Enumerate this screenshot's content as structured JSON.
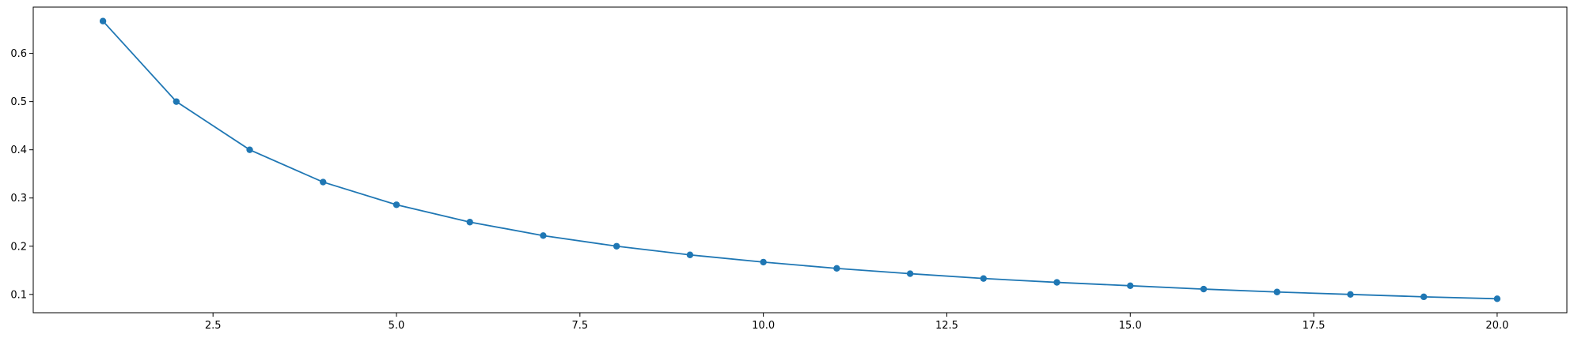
{
  "chart_data": {
    "type": "line",
    "title": "",
    "xlabel": "",
    "ylabel": "",
    "xlim": [
      0.05,
      20.95
    ],
    "ylim": [
      0.062,
      0.696
    ],
    "xticks": [
      2.5,
      5.0,
      7.5,
      10.0,
      12.5,
      15.0,
      17.5,
      20.0
    ],
    "xtick_labels": [
      "2.5",
      "5.0",
      "7.5",
      "10.0",
      "12.5",
      "15.0",
      "17.5",
      "20.0"
    ],
    "yticks": [
      0.1,
      0.2,
      0.3,
      0.4,
      0.5,
      0.6
    ],
    "ytick_labels": [
      "0.1",
      "0.2",
      "0.3",
      "0.4",
      "0.5",
      "0.6"
    ],
    "grid": false,
    "legend": "none",
    "series": [
      {
        "color": "#1f77b4",
        "marker": "circle",
        "x": [
          1,
          2,
          3,
          4,
          5,
          6,
          7,
          8,
          9,
          10,
          11,
          12,
          13,
          14,
          15,
          16,
          17,
          18,
          19,
          20
        ],
        "y": [
          0.667,
          0.5,
          0.4,
          0.333,
          0.286,
          0.25,
          0.222,
          0.2,
          0.182,
          0.167,
          0.154,
          0.143,
          0.133,
          0.125,
          0.118,
          0.111,
          0.105,
          0.1,
          0.095,
          0.091
        ]
      }
    ]
  }
}
